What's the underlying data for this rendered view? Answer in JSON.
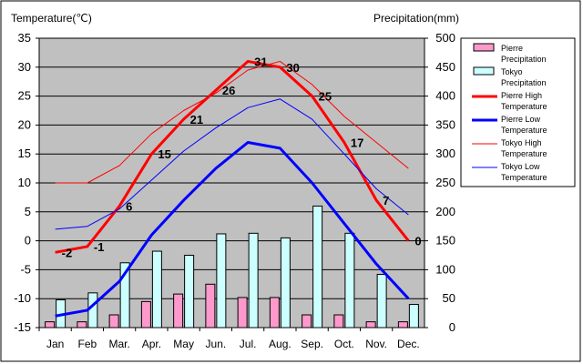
{
  "chart_data": {
    "type": "bar+line",
    "title_left": "Temperature(℃)",
    "title_right": "Precipitation(mm)",
    "categories": [
      "Jan",
      "Feb",
      "Mar.",
      "Apr.",
      "May",
      "Jun.",
      "Jul.",
      "Aug.",
      "Sep.",
      "Oct.",
      "Nov.",
      "Dec."
    ],
    "y_left": {
      "min": -15,
      "max": 35,
      "ticks": [
        35,
        30,
        25,
        20,
        15,
        10,
        5,
        0,
        -5,
        -10,
        -15
      ]
    },
    "y_right": {
      "min": 0,
      "max": 500,
      "ticks": [
        500,
        450,
        400,
        350,
        300,
        250,
        200,
        150,
        100,
        50,
        0
      ]
    },
    "bars": [
      {
        "name": "Pierre Precipitation",
        "color": "#ff99cc",
        "values": [
          10,
          10,
          22,
          45,
          58,
          75,
          52,
          52,
          22,
          22,
          10,
          10
        ]
      },
      {
        "name": "Tokyo Precipitation",
        "color": "#ccffff",
        "values": [
          48,
          60,
          112,
          132,
          125,
          162,
          163,
          155,
          210,
          163,
          92,
          40
        ]
      }
    ],
    "lines": [
      {
        "name": "Pierre High Temperature",
        "color": "#ff0000",
        "width": 3,
        "values": [
          -2,
          -1,
          6,
          15,
          21,
          26,
          31,
          30,
          25,
          17,
          7,
          0
        ],
        "labels": true
      },
      {
        "name": "Pierre Low Temperature",
        "color": "#0000ff",
        "width": 3,
        "values": [
          -13,
          -12,
          -7,
          1,
          7,
          12.5,
          17,
          16,
          10,
          3,
          -4,
          -10
        ],
        "labels": false
      },
      {
        "name": "Tokyo High Temperature",
        "color": "#ff0000",
        "width": 1,
        "values": [
          10,
          10,
          13,
          18.5,
          22.5,
          25.5,
          29.5,
          31,
          27,
          21.5,
          17,
          12.5
        ],
        "labels": false
      },
      {
        "name": "Tokyo Low Temperature",
        "color": "#0000ff",
        "width": 1,
        "values": [
          2,
          2.5,
          5.5,
          10.5,
          15.5,
          19.5,
          23,
          24.5,
          21,
          15,
          9,
          4.5
        ],
        "labels": false
      }
    ],
    "legend": [
      {
        "name": "Pierre Precipitation",
        "line1": "Pierre",
        "line2": "Precipitation",
        "kind": "box",
        "color": "#ff99cc"
      },
      {
        "name": "Tokyo Precipitation",
        "line1": "Tokyo",
        "line2": "Precipitation",
        "kind": "box",
        "color": "#ccffff"
      },
      {
        "name": "Pierre High Temperature",
        "line1": "Pierre High",
        "line2": "Temperature",
        "kind": "line",
        "color": "#ff0000",
        "width": 3
      },
      {
        "name": "Pierre Low Temperature",
        "line1": "Pierre Low",
        "line2": "Temperature",
        "kind": "line",
        "color": "#0000ff",
        "width": 3
      },
      {
        "name": "Tokyo High Temperature",
        "line1": "Tokyo High",
        "line2": "Temperature",
        "kind": "line",
        "color": "#ff0000",
        "width": 1
      },
      {
        "name": "Tokyo Low Temperature",
        "line1": "Tokyo Low",
        "line2": "Temperature",
        "kind": "line",
        "color": "#0000ff",
        "width": 1
      }
    ],
    "plot_background": "#c0c0c0",
    "grid": true,
    "legend_position": "right"
  }
}
